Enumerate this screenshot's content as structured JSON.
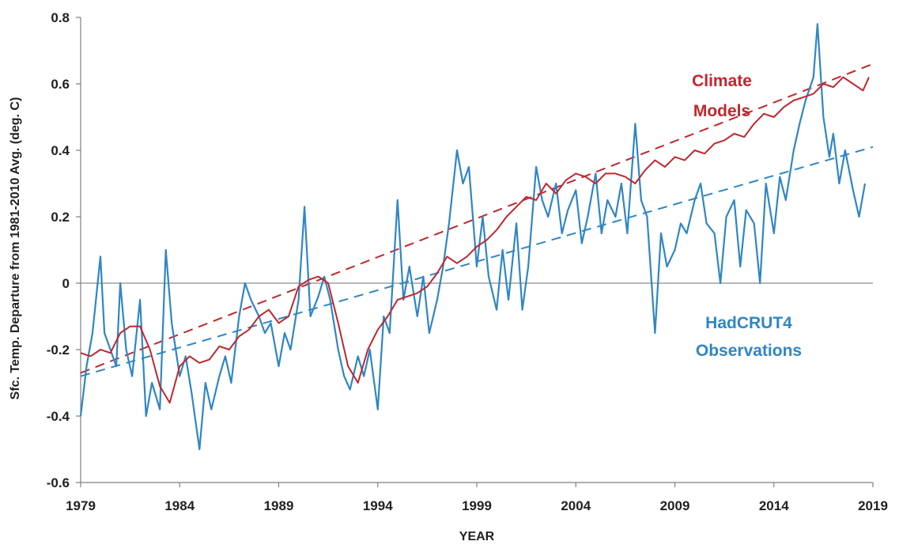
{
  "chart_data": {
    "type": "line",
    "xlabel": "YEAR",
    "ylabel": "Sfc. Temp. Departure from 1981-2010 Avg. (deg. C)",
    "xlim": [
      1979,
      2019
    ],
    "ylim": [
      -0.6,
      0.8
    ],
    "x_ticks": [
      "1979",
      "1984",
      "1989",
      "1994",
      "1999",
      "2004",
      "2009",
      "2014",
      "2019"
    ],
    "y_ticks": [
      "-0.6",
      "-0.4",
      "-0.2",
      "0",
      "0.2",
      "0.4",
      "0.6",
      "0.8"
    ],
    "grid": false,
    "zero_line": true,
    "colors": {
      "models": "#c0272d",
      "observations": "#2f86c5",
      "axis": "#7f7f7f",
      "zero_line": "#8c8c8c"
    },
    "series": [
      {
        "name": "Climate Models",
        "label_lines": [
          "Climate",
          "Models"
        ],
        "color": "#c0272d",
        "x": [
          1979.0,
          1979.5,
          1980.0,
          1980.5,
          1981.0,
          1981.5,
          1982.0,
          1982.5,
          1983.0,
          1983.5,
          1984.0,
          1984.5,
          1985.0,
          1985.5,
          1986.0,
          1986.5,
          1987.0,
          1987.5,
          1988.0,
          1988.5,
          1989.0,
          1989.5,
          1990.0,
          1990.5,
          1991.0,
          1991.5,
          1992.0,
          1992.5,
          1993.0,
          1993.5,
          1994.0,
          1994.5,
          1995.0,
          1995.5,
          1996.0,
          1996.5,
          1997.0,
          1997.5,
          1998.0,
          1998.5,
          1999.0,
          1999.5,
          2000.0,
          2000.5,
          2001.0,
          2001.5,
          2002.0,
          2002.5,
          2003.0,
          2003.5,
          2004.0,
          2004.5,
          2005.0,
          2005.5,
          2006.0,
          2006.5,
          2007.0,
          2007.5,
          2008.0,
          2008.5,
          2009.0,
          2009.5,
          2010.0,
          2010.5,
          2011.0,
          2011.5,
          2012.0,
          2012.5,
          2013.0,
          2013.5,
          2014.0,
          2014.5,
          2015.0,
          2015.5,
          2016.0,
          2016.5,
          2017.0,
          2017.5,
          2018.0,
          2018.5,
          2018.8
        ],
        "values": [
          -0.21,
          -0.22,
          -0.2,
          -0.21,
          -0.15,
          -0.13,
          -0.13,
          -0.2,
          -0.31,
          -0.36,
          -0.25,
          -0.22,
          -0.24,
          -0.23,
          -0.19,
          -0.2,
          -0.16,
          -0.14,
          -0.1,
          -0.08,
          -0.12,
          -0.1,
          -0.01,
          0.01,
          0.02,
          0.0,
          -0.12,
          -0.25,
          -0.3,
          -0.2,
          -0.14,
          -0.1,
          -0.05,
          -0.04,
          -0.03,
          -0.01,
          0.03,
          0.08,
          0.06,
          0.08,
          0.11,
          0.13,
          0.16,
          0.2,
          0.23,
          0.26,
          0.25,
          0.3,
          0.27,
          0.31,
          0.33,
          0.32,
          0.3,
          0.33,
          0.33,
          0.32,
          0.3,
          0.34,
          0.37,
          0.35,
          0.38,
          0.37,
          0.4,
          0.39,
          0.42,
          0.43,
          0.45,
          0.44,
          0.48,
          0.51,
          0.5,
          0.53,
          0.55,
          0.56,
          0.57,
          0.6,
          0.59,
          0.62,
          0.6,
          0.58,
          0.62
        ]
      },
      {
        "name": "HadCRUT4 Observations",
        "label_lines": [
          "HadCRUT4",
          "Observations"
        ],
        "color": "#2f86c5",
        "x": [
          1979.0,
          1979.3,
          1979.6,
          1980.0,
          1980.2,
          1980.5,
          1980.8,
          1981.0,
          1981.3,
          1981.6,
          1982.0,
          1982.3,
          1982.6,
          1983.0,
          1983.3,
          1983.6,
          1984.0,
          1984.3,
          1984.6,
          1985.0,
          1985.3,
          1985.6,
          1986.0,
          1986.3,
          1986.6,
          1987.0,
          1987.3,
          1987.6,
          1988.0,
          1988.3,
          1988.6,
          1989.0,
          1989.3,
          1989.6,
          1990.0,
          1990.3,
          1990.6,
          1991.0,
          1991.3,
          1991.6,
          1992.0,
          1992.3,
          1992.6,
          1993.0,
          1993.3,
          1993.6,
          1994.0,
          1994.3,
          1994.6,
          1995.0,
          1995.3,
          1995.6,
          1996.0,
          1996.3,
          1996.6,
          1997.0,
          1997.3,
          1997.6,
          1998.0,
          1998.3,
          1998.6,
          1999.0,
          1999.3,
          1999.6,
          2000.0,
          2000.3,
          2000.6,
          2001.0,
          2001.3,
          2001.6,
          2002.0,
          2002.3,
          2002.6,
          2003.0,
          2003.3,
          2003.6,
          2004.0,
          2004.3,
          2004.6,
          2005.0,
          2005.3,
          2005.6,
          2006.0,
          2006.3,
          2006.6,
          2007.0,
          2007.3,
          2007.6,
          2008.0,
          2008.3,
          2008.6,
          2009.0,
          2009.3,
          2009.6,
          2010.0,
          2010.3,
          2010.6,
          2011.0,
          2011.3,
          2011.6,
          2012.0,
          2012.3,
          2012.6,
          2013.0,
          2013.3,
          2013.6,
          2014.0,
          2014.3,
          2014.6,
          2015.0,
          2015.3,
          2015.6,
          2016.0,
          2016.2,
          2016.5,
          2016.8,
          2017.0,
          2017.3,
          2017.6,
          2018.0,
          2018.3,
          2018.6
        ],
        "values": [
          -0.4,
          -0.25,
          -0.15,
          0.08,
          -0.15,
          -0.2,
          -0.25,
          0.0,
          -0.2,
          -0.28,
          -0.05,
          -0.4,
          -0.3,
          -0.38,
          0.1,
          -0.12,
          -0.28,
          -0.22,
          -0.33,
          -0.5,
          -0.3,
          -0.38,
          -0.28,
          -0.22,
          -0.3,
          -0.1,
          0.0,
          -0.05,
          -0.1,
          -0.15,
          -0.12,
          -0.25,
          -0.15,
          -0.2,
          -0.05,
          0.23,
          -0.1,
          -0.04,
          0.02,
          -0.05,
          -0.2,
          -0.28,
          -0.32,
          -0.22,
          -0.28,
          -0.2,
          -0.38,
          -0.1,
          -0.15,
          0.25,
          -0.05,
          0.05,
          -0.1,
          0.02,
          -0.15,
          -0.05,
          0.05,
          0.18,
          0.4,
          0.3,
          0.35,
          0.05,
          0.2,
          0.02,
          -0.08,
          0.1,
          -0.05,
          0.18,
          -0.08,
          0.05,
          0.35,
          0.25,
          0.2,
          0.3,
          0.15,
          0.22,
          0.28,
          0.12,
          0.2,
          0.33,
          0.15,
          0.25,
          0.2,
          0.3,
          0.15,
          0.48,
          0.25,
          0.2,
          -0.15,
          0.15,
          0.05,
          0.1,
          0.18,
          0.15,
          0.25,
          0.3,
          0.18,
          0.15,
          0.0,
          0.2,
          0.25,
          0.05,
          0.22,
          0.18,
          0.0,
          0.3,
          0.15,
          0.32,
          0.25,
          0.4,
          0.48,
          0.55,
          0.62,
          0.78,
          0.5,
          0.38,
          0.45,
          0.3,
          0.4,
          0.28,
          0.2,
          0.3
        ]
      }
    ],
    "trend_lines": [
      {
        "series": "Climate Models",
        "style": "dashed",
        "color": "#c0272d",
        "x": [
          1979,
          2019
        ],
        "y": [
          -0.27,
          0.66
        ]
      },
      {
        "series": "HadCRUT4 Observations",
        "style": "dashed",
        "color": "#2f86c5",
        "x": [
          1979,
          2019
        ],
        "y": [
          -0.28,
          0.41
        ]
      }
    ]
  }
}
